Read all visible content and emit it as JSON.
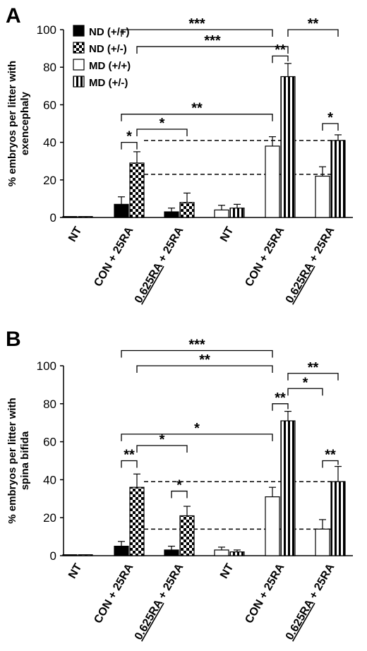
{
  "chart_data": [
    {
      "panel": "A",
      "type": "bar",
      "ylabel_lines": [
        "% embryos per litter with",
        "exencephaly"
      ],
      "ylim": [
        0,
        100
      ],
      "yticks": [
        "0",
        "20",
        "40",
        "60",
        "80",
        "100"
      ],
      "ytick_values": [
        0,
        20,
        40,
        60,
        80,
        100
      ],
      "legend": [
        {
          "label": "ND (+/+)",
          "style": "solid-black"
        },
        {
          "label": "ND (+/-)",
          "style": "checker"
        },
        {
          "label": "MD (+/+)",
          "style": "white"
        },
        {
          "label": "MD (+/-)",
          "style": "vertical-stripes"
        }
      ],
      "groups": [
        {
          "label": "NT",
          "diet": "ND",
          "values": [
            0.5,
            0.5
          ],
          "errors": [
            0,
            0
          ]
        },
        {
          "label": "CON + 25RA",
          "diet": "ND",
          "values": [
            7,
            29
          ],
          "errors": [
            4,
            6
          ]
        },
        {
          "label_underlined": "0.625RA",
          "label_rest": " + 25RA",
          "diet": "ND",
          "values": [
            3,
            8
          ],
          "errors": [
            2,
            5
          ]
        },
        {
          "label": "NT",
          "diet": "MD",
          "values": [
            4,
            5
          ],
          "errors": [
            2.5,
            2
          ]
        },
        {
          "label": "CON + 25RA",
          "diet": "MD",
          "values": [
            38,
            75
          ],
          "errors": [
            5,
            7
          ]
        },
        {
          "label_underlined": "0.625RA",
          "label_rest": " + 25RA",
          "diet": "MD",
          "values": [
            22,
            41
          ],
          "errors": [
            5,
            3
          ]
        }
      ],
      "reference_lines": [
        41,
        23
      ],
      "significance": [
        {
          "from": [
            1,
            0
          ],
          "to": [
            4,
            0
          ],
          "label": "***",
          "level": 100
        },
        {
          "from": [
            1,
            1
          ],
          "to": [
            4,
            1
          ],
          "label": "***",
          "level": 91
        },
        {
          "from": [
            4,
            1
          ],
          "to": [
            5,
            1
          ],
          "label": "**",
          "level": 100
        },
        {
          "from": [
            4,
            0
          ],
          "to": [
            4,
            1
          ],
          "label": "**",
          "level": 86
        },
        {
          "from": [
            1,
            0
          ],
          "to": [
            4,
            0
          ],
          "label": "**",
          "level": 55
        },
        {
          "from": [
            1,
            1
          ],
          "to": [
            2,
            1
          ],
          "label": "*",
          "level": 47
        },
        {
          "from": [
            1,
            0
          ],
          "to": [
            1,
            1
          ],
          "label": "*",
          "level": 40
        },
        {
          "from": [
            5,
            0
          ],
          "to": [
            5,
            1
          ],
          "label": "*",
          "level": 50
        }
      ]
    },
    {
      "panel": "B",
      "type": "bar",
      "ylabel_lines": [
        "% embryos per litter with",
        "spina bifida"
      ],
      "ylim": [
        0,
        100
      ],
      "yticks": [
        "0",
        "20",
        "40",
        "60",
        "80",
        "100"
      ],
      "ytick_values": [
        0,
        20,
        40,
        60,
        80,
        100
      ],
      "groups": [
        {
          "label": "NT",
          "diet": "ND",
          "values": [
            0.5,
            0.5
          ],
          "errors": [
            0,
            0
          ]
        },
        {
          "label": "CON + 25RA",
          "diet": "ND",
          "values": [
            5,
            36
          ],
          "errors": [
            2.5,
            7
          ]
        },
        {
          "label_underlined": "0.625RA",
          "label_rest": " + 25RA",
          "diet": "ND",
          "values": [
            3,
            21
          ],
          "errors": [
            2,
            5
          ]
        },
        {
          "label": "NT",
          "diet": "MD",
          "values": [
            3,
            2
          ],
          "errors": [
            1.5,
            1
          ]
        },
        {
          "label": "CON + 25RA",
          "diet": "MD",
          "values": [
            31,
            71
          ],
          "errors": [
            5,
            5
          ]
        },
        {
          "label_underlined": "0.625RA",
          "label_rest": " + 25RA",
          "diet": "MD",
          "values": [
            14,
            39
          ],
          "errors": [
            5,
            8
          ]
        }
      ],
      "reference_lines": [
        39,
        14
      ],
      "significance": [
        {
          "from": [
            1,
            0
          ],
          "to": [
            4,
            0
          ],
          "label": "***",
          "level": 108
        },
        {
          "from": [
            1,
            1
          ],
          "to": [
            4,
            0
          ],
          "label": "**",
          "level": 100
        },
        {
          "from": [
            4,
            1
          ],
          "to": [
            5,
            1
          ],
          "label": "**",
          "level": 96
        },
        {
          "from": [
            4,
            1
          ],
          "to": [
            5,
            0
          ],
          "label": "*",
          "level": 88
        },
        {
          "from": [
            4,
            0
          ],
          "to": [
            4,
            1
          ],
          "label": "**",
          "level": 80
        },
        {
          "from": [
            1,
            0
          ],
          "to": [
            4,
            0
          ],
          "label": "*",
          "level": 64
        },
        {
          "from": [
            1,
            1
          ],
          "to": [
            2,
            1
          ],
          "label": "*",
          "level": 58
        },
        {
          "from": [
            1,
            0
          ],
          "to": [
            1,
            1
          ],
          "label": "**",
          "level": 50
        },
        {
          "from": [
            2,
            0
          ],
          "to": [
            2,
            1
          ],
          "label": "*",
          "level": 34
        },
        {
          "from": [
            5,
            0
          ],
          "to": [
            5,
            1
          ],
          "label": "**",
          "level": 50
        }
      ]
    }
  ]
}
